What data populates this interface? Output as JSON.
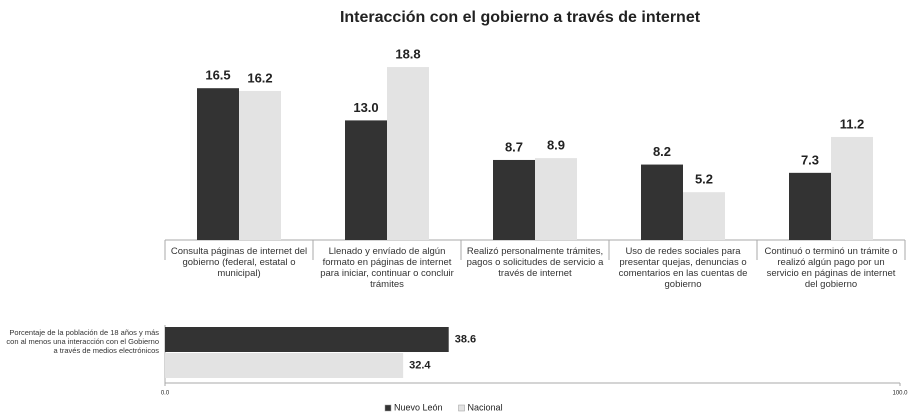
{
  "chart_data": [
    {
      "type": "bar",
      "title": "Interacción con el gobierno a través de internet",
      "categories": [
        "Consulta páginas de internet del gobierno (federal, estatal o municipal)",
        "Llenado y envíado de algún formato en páginas de internet para iniciar, continuar o concluir trámites",
        "Realizó personalmente trámites, pagos o solicitudes de servicio a través de internet",
        "Uso de redes sociales para presentar quejas, denuncias o comentarios en las cuentas de gobierno",
        "Continuó o terminó un trámite o realizó algún pago por un servicio en páginas de internet del gobierno"
      ],
      "series": [
        {
          "name": "Nuevo León",
          "color": "#333333",
          "values": [
            16.5,
            13.0,
            8.7,
            8.2,
            7.3
          ],
          "value_labels": [
            "16.5",
            "13.0",
            "8.7",
            "8.2",
            "7.3"
          ]
        },
        {
          "name": "Nacional",
          "color": "#e3e3e3",
          "values": [
            16.2,
            18.8,
            8.9,
            5.2,
            11.2
          ],
          "value_labels": [
            "16.2",
            "18.8",
            "8.9",
            "5.2",
            "11.2"
          ]
        }
      ],
      "ylim": [
        0,
        20
      ],
      "legend": "bottom"
    },
    {
      "type": "hbar",
      "categories": [
        "Porcentaje de la población de 18 años y más con al menos una interacción con el Gobierno a través de medios electrónicos"
      ],
      "series": [
        {
          "color": "#333333",
          "values": [
            38.6
          ],
          "value_labels": [
            "38.6"
          ]
        },
        {
          "color": "#e3e3e3",
          "values": [
            32.4
          ],
          "value_labels": [
            "32.4"
          ]
        }
      ],
      "xlim": [
        0,
        100
      ],
      "xticks": [
        {
          "value": 0,
          "label": "0.0"
        },
        {
          "value": 100,
          "label": "100.0"
        }
      ]
    }
  ]
}
